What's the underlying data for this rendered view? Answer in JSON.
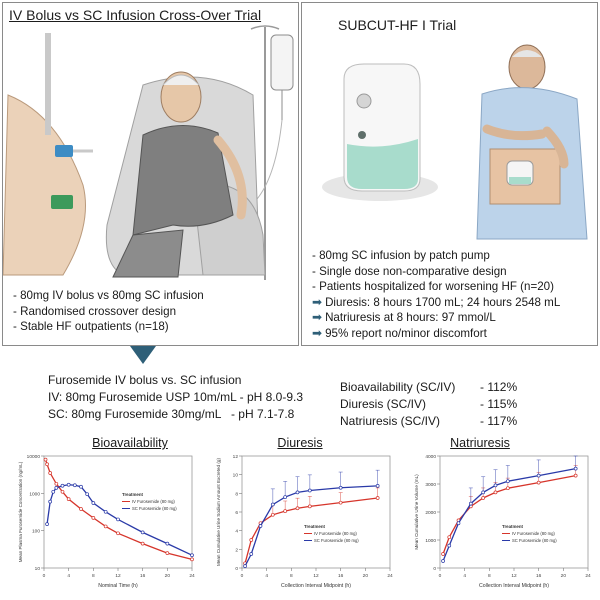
{
  "left_panel": {
    "title": "IV Bolus vs SC Infusion Cross-Over Trial",
    "bullets": [
      "- 80mg IV bolus vs 80mg SC infusion",
      "- Randomised crossover design",
      "- Stable HF outpatients (n=18)"
    ]
  },
  "right_panel": {
    "title": "SUBCUT-HF I Trial",
    "bullets": [
      "- 80mg SC infusion by patch pump",
      "- Single dose non-comparative design",
      "- Patients hospitalized for worsening HF (n=20)"
    ],
    "highlights": [
      "Diuresis: 8 hours 1700 mL; 24 hours 2548 mL",
      "Natriuresis at 8 hours: 97 mmol/L",
      "95% report no/minor discomfort"
    ]
  },
  "summary": {
    "heading": "Furosemide IV bolus vs. SC infusion",
    "iv_line": "IV: 80mg Furosemide USP 10m/mL - pH 8.0-9.3",
    "sc_line": "SC: 80mg Furosemide 30mg/mL   - pH 7.1-7.8",
    "ratios": [
      {
        "label": "Bioavailability (SC/IV)",
        "value": "- 112%"
      },
      {
        "label": "Diuresis (SC/IV)",
        "value": "- 115%"
      },
      {
        "label": "Natriuresis (SC/IV)",
        "value": "- 117%"
      }
    ]
  },
  "colors": {
    "iv": "#d6352b",
    "sc": "#2a3aa8",
    "arrow": "#2e5f78",
    "cream": "#efe7c9"
  },
  "chart_data": [
    {
      "type": "line",
      "title": "Bioavailability",
      "xlabel": "Nominal Time (h)",
      "ylabel": "Mean Plasma Furosemide Concentration (ng/mL)",
      "yscale": "log",
      "ylim": [
        10,
        10000
      ],
      "xlim": [
        0,
        24
      ],
      "xticks": [
        "0",
        "4",
        "8",
        "12",
        "16",
        "20",
        "24"
      ],
      "yticks": [
        "10",
        "100",
        "1000",
        "10000"
      ],
      "legend_title": "Treatment",
      "series": [
        {
          "name": "IV Furosemide (80 mg)",
          "x": [
            0.25,
            0.5,
            1,
            2,
            3,
            4,
            6,
            8,
            10,
            12,
            16,
            20,
            24
          ],
          "y": [
            8000,
            6000,
            3500,
            1800,
            1100,
            700,
            380,
            220,
            130,
            85,
            45,
            25,
            17
          ]
        },
        {
          "name": "SC Furosemide (80 mg)",
          "x": [
            0.5,
            1,
            1.5,
            2,
            3,
            4,
            5,
            6,
            7,
            8,
            10,
            12,
            16,
            20,
            24
          ],
          "y": [
            150,
            600,
            1100,
            1400,
            1600,
            1700,
            1650,
            1500,
            950,
            550,
            320,
            200,
            90,
            45,
            22
          ]
        }
      ]
    },
    {
      "type": "line",
      "title": "Diuresis",
      "xlabel": "Collection Interval Midpoint (h)",
      "ylabel": "Mean Cumulative Urine Sodium Amount Excreted (g)",
      "ylim": [
        0,
        12
      ],
      "xlim": [
        0,
        24
      ],
      "xticks": [
        "0",
        "4",
        "8",
        "12",
        "16",
        "20",
        "24"
      ],
      "yticks": [
        "0",
        "2",
        "4",
        "6",
        "8",
        "10",
        "12"
      ],
      "legend_title": "Treatment",
      "series": [
        {
          "name": "IV Furosemide (80 mg)",
          "x": [
            0.5,
            1.5,
            3,
            5,
            7,
            9,
            11,
            16,
            22
          ],
          "y": [
            0.5,
            3,
            4.8,
            5.7,
            6.1,
            6.4,
            6.6,
            7,
            7.5
          ]
        },
        {
          "name": "SC Furosemide (80 mg)",
          "x": [
            0.5,
            1.5,
            3,
            5,
            7,
            9,
            11,
            16,
            22
          ],
          "y": [
            0.2,
            1.5,
            4.5,
            6.8,
            7.6,
            8.1,
            8.3,
            8.6,
            8.8
          ]
        }
      ]
    },
    {
      "type": "line",
      "title": "Natriuresis",
      "xlabel": "Collection Interval Midpoint (h)",
      "ylabel": "Mean Cumulative Urine Volume (mL)",
      "ylim": [
        0,
        4000
      ],
      "xlim": [
        0,
        24
      ],
      "xticks": [
        "0",
        "4",
        "8",
        "12",
        "16",
        "20",
        "24"
      ],
      "yticks": [
        "0",
        "1000",
        "2000",
        "3000",
        "4000"
      ],
      "legend_title": "Treatment",
      "series": [
        {
          "name": "IV Furosemide (80 mg)",
          "x": [
            0.5,
            1.5,
            3,
            5,
            7,
            9,
            11,
            16,
            22
          ],
          "y": [
            500,
            1100,
            1700,
            2200,
            2500,
            2700,
            2850,
            3050,
            3300
          ]
        },
        {
          "name": "SC Furosemide (80 mg)",
          "x": [
            0.5,
            1.5,
            3,
            5,
            7,
            9,
            11,
            16,
            22
          ],
          "y": [
            250,
            800,
            1600,
            2300,
            2700,
            2950,
            3100,
            3300,
            3550
          ]
        }
      ]
    }
  ]
}
